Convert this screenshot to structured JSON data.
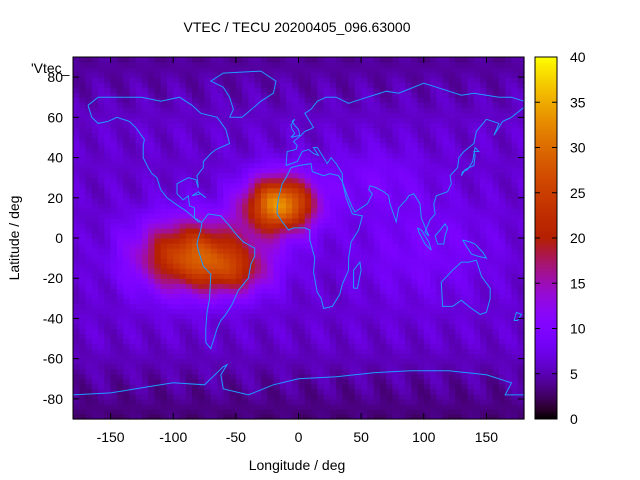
{
  "chart_data": {
    "type": "heatmap",
    "title": "VTEC / TECU 20200405_096.63000",
    "xlabel": "Longitude / deg",
    "ylabel": "Latitude / deg",
    "legend_key": "'Vtec_",
    "xlim": [
      -180,
      180
    ],
    "ylim": [
      -90,
      90
    ],
    "xticks": [
      -150,
      -100,
      -50,
      0,
      50,
      100,
      150
    ],
    "yticks": [
      -80,
      -60,
      -40,
      -20,
      0,
      20,
      40,
      60,
      80
    ],
    "colorbar": {
      "min": 0,
      "max": 40,
      "ticks": [
        0,
        5,
        10,
        15,
        20,
        25,
        30,
        35,
        40
      ],
      "palette": "black-blue-purple-red-orange-yellow"
    },
    "grid_resolution": {
      "dlon": 5,
      "dlat": 2.5
    },
    "field_features": [
      {
        "name": "background",
        "tec": 6
      },
      {
        "name": "equatorial-anomaly-west",
        "lon": -80,
        "lat": -8,
        "tec": 26
      },
      {
        "name": "equatorial-anomaly-crest-north",
        "lon": -15,
        "lat": 17,
        "tec": 35
      },
      {
        "name": "equatorial-anomaly-crest-south",
        "lon": -50,
        "lat": -17,
        "tec": 22
      },
      {
        "name": "pacific-low",
        "lon": -160,
        "lat": 0,
        "tec": 10
      },
      {
        "name": "polar-north",
        "lat": 85,
        "tec": 4
      },
      {
        "name": "polar-south",
        "lat": -85,
        "tec": 3
      }
    ],
    "overlay": "coastlines"
  }
}
